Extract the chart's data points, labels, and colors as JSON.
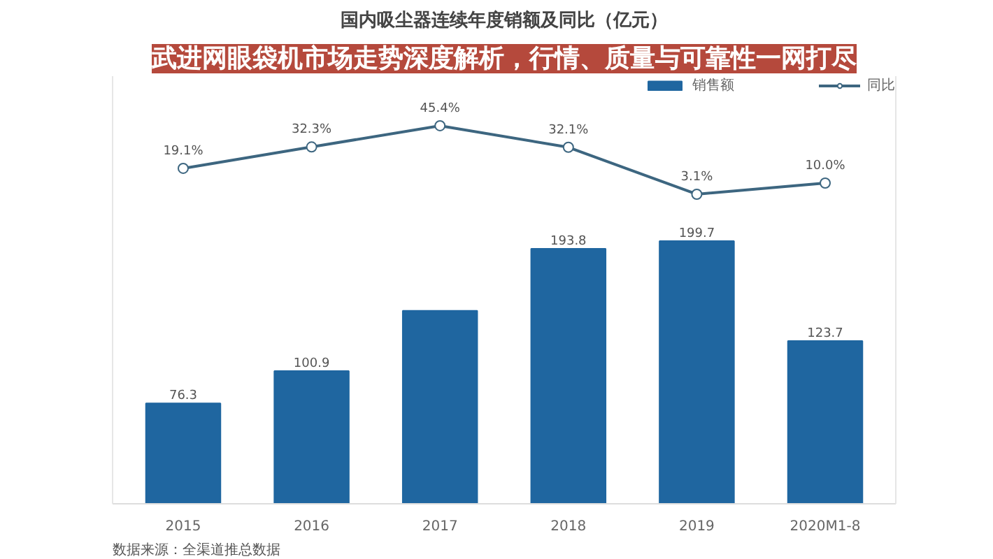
{
  "chart_data": {
    "type": "bar",
    "title": "国内吸尘器连续年度销额及同比（亿元）",
    "categories": [
      "2015",
      "2016",
      "2017",
      "2018",
      "2019",
      "2020M1-8"
    ],
    "series": [
      {
        "name": "销售额",
        "color": "#1f66a0",
        "values": [
          76.3,
          100.9,
          146.7,
          193.8,
          199.7,
          123.7
        ],
        "value_labels": [
          "76.3",
          "100.9",
          null,
          "193.8",
          "199.7",
          "123.7"
        ]
      },
      {
        "name": "同比",
        "type": "line",
        "axis": "y2",
        "color": "#3d6680",
        "marker": "circle",
        "values": [
          19.1,
          32.3,
          45.4,
          32.1,
          3.1,
          10.0
        ],
        "value_labels": [
          "19.1%",
          "32.3%",
          "45.4%",
          "32.1%",
          "3.1%",
          "10.0%"
        ]
      }
    ],
    "ylim": [
      0,
      325
    ],
    "y2lim": [
      -188,
      76
    ],
    "tick_labels": "x",
    "grid": false,
    "legend": "top right",
    "annotations": [
      "武进网眼袋机市场走势深度解析，行情、质量与可靠性一网打尽",
      "数据来源：全渠道推总数据"
    ]
  }
}
